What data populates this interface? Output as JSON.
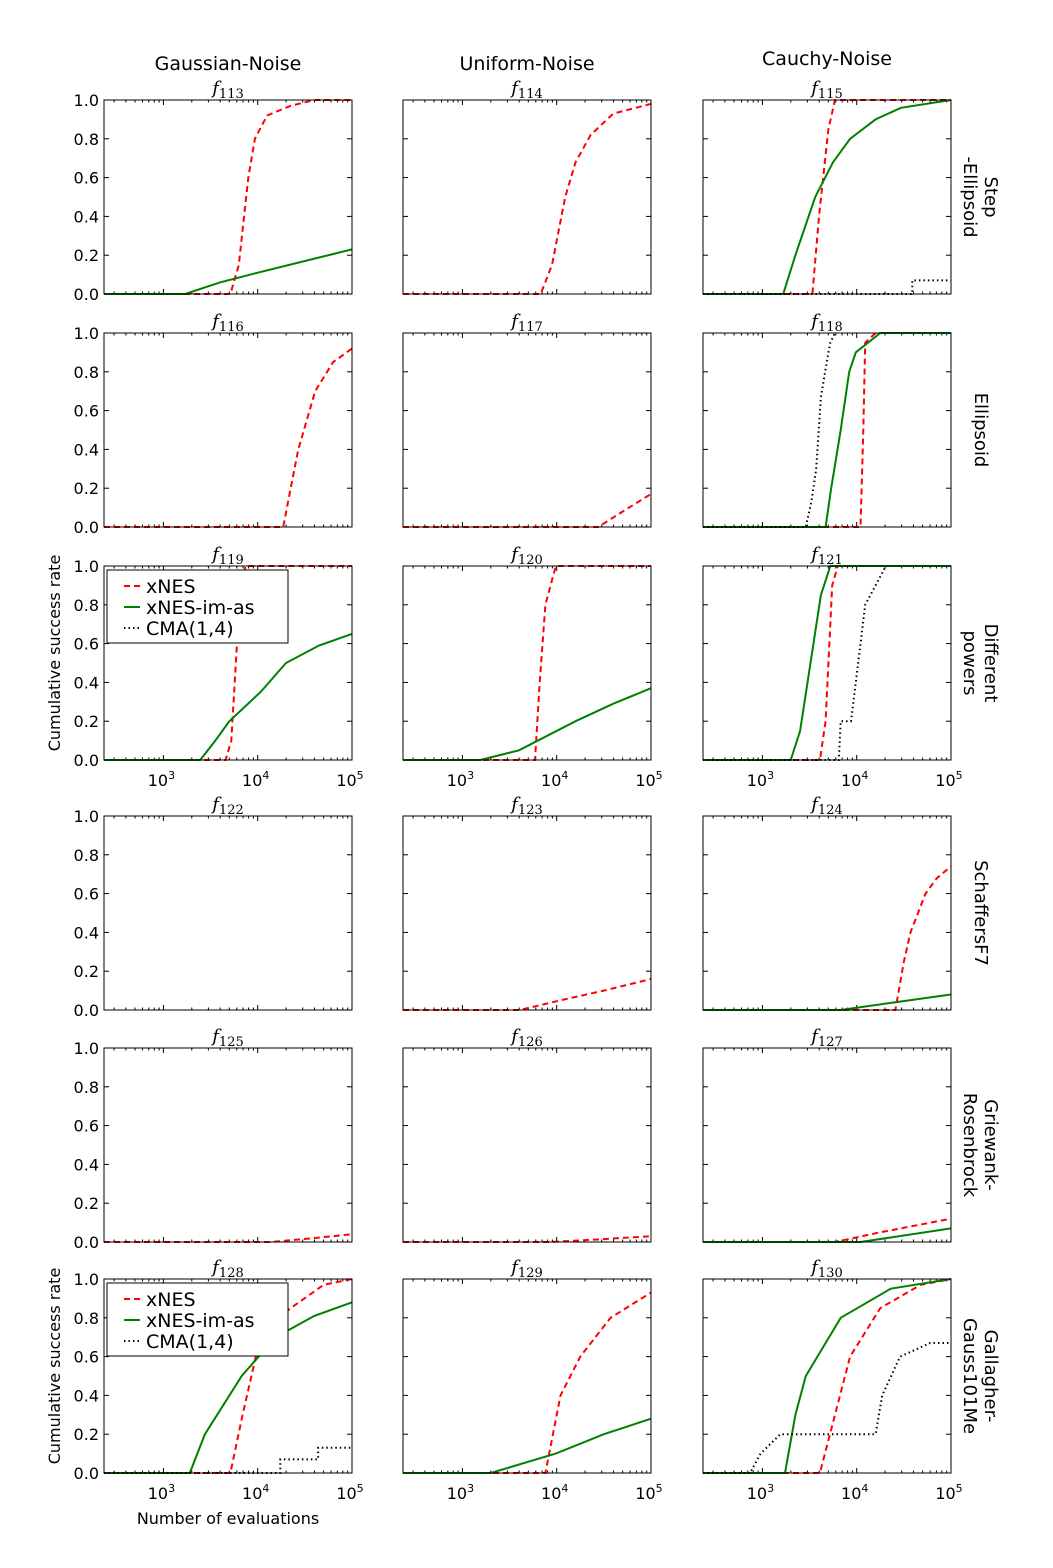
{
  "chart_data": {
    "type": "line",
    "column_titles": [
      "Gaussian-Noise",
      "Uniform-Noise",
      "Cauchy-Noise"
    ],
    "row_labels": [
      [
        "Step",
        "-Ellipsoid"
      ],
      [
        "Ellipsoid"
      ],
      [
        "Different",
        "powers"
      ],
      [
        "SchaffersF7"
      ],
      [
        "Griewank-",
        "Rosenbrock"
      ],
      [
        "Gallagher-",
        "Gauss101Me"
      ]
    ],
    "ylabel": "Cumulative success rate",
    "xlabel": "Number of evaluations",
    "x_scale": "log10",
    "xlim_log10": [
      2.37,
      5
    ],
    "ylim": [
      0,
      1
    ],
    "y_ticks": [
      "0.0",
      "0.2",
      "0.4",
      "0.6",
      "0.8",
      "1.0"
    ],
    "x_ticks": [
      {
        "base": "10",
        "exp": "3"
      },
      {
        "base": "10",
        "exp": "4"
      },
      {
        "base": "10",
        "exp": "5"
      }
    ],
    "legend": {
      "placement": "top-left",
      "entries": [
        {
          "name": "xNES",
          "color": "#ff0000",
          "style": "dashed"
        },
        {
          "name": "xNES-im-as",
          "color": "#008000",
          "style": "solid"
        },
        {
          "name": "CMA(1,4)",
          "color": "#000000",
          "style": "dotted"
        }
      ]
    },
    "panels": [
      {
        "f": "f",
        "sub": "113",
        "series": {
          "xNES": [
            [
              2.37,
              0
            ],
            [
              3.71,
              0
            ],
            [
              3.8,
              0.15
            ],
            [
              3.9,
              0.6
            ],
            [
              3.97,
              0.8
            ],
            [
              4.1,
              0.92
            ],
            [
              4.35,
              0.97
            ],
            [
              4.6,
              1.0
            ],
            [
              5,
              1.0
            ]
          ],
          "xNES-im-as": [
            [
              2.37,
              0
            ],
            [
              3.23,
              0
            ],
            [
              3.6,
              0.06
            ],
            [
              4.0,
              0.11
            ],
            [
              4.5,
              0.17
            ],
            [
              5,
              0.23
            ]
          ]
        }
      },
      {
        "f": "f",
        "sub": "114",
        "series": {
          "xNES": [
            [
              2.37,
              0
            ],
            [
              3.83,
              0
            ],
            [
              3.95,
              0.15
            ],
            [
              4.09,
              0.5
            ],
            [
              4.2,
              0.68
            ],
            [
              4.36,
              0.82
            ],
            [
              4.6,
              0.93
            ],
            [
              5,
              0.98
            ]
          ]
        }
      },
      {
        "f": "f",
        "sub": "115",
        "series": {
          "xNES": [
            [
              2.37,
              0
            ],
            [
              3.53,
              0
            ],
            [
              3.6,
              0.4
            ],
            [
              3.7,
              0.85
            ],
            [
              3.77,
              1.0
            ],
            [
              5,
              1.0
            ]
          ],
          "xNES-im-as": [
            [
              2.37,
              0
            ],
            [
              3.22,
              0
            ],
            [
              3.35,
              0.2
            ],
            [
              3.56,
              0.5
            ],
            [
              3.75,
              0.68
            ],
            [
              3.93,
              0.8
            ],
            [
              4.2,
              0.9
            ],
            [
              4.47,
              0.96
            ],
            [
              5,
              1.0
            ]
          ],
          "CMA(1,4)": [
            [
              2.37,
              0
            ],
            [
              4.59,
              0
            ],
            [
              4.59,
              0.07
            ],
            [
              5,
              0.07
            ]
          ]
        }
      },
      {
        "f": "f",
        "sub": "116",
        "series": {
          "xNES": [
            [
              2.37,
              0
            ],
            [
              4.27,
              0
            ],
            [
              4.35,
              0.2
            ],
            [
              4.43,
              0.4
            ],
            [
              4.61,
              0.7
            ],
            [
              4.8,
              0.85
            ],
            [
              5,
              0.92
            ]
          ]
        }
      },
      {
        "f": "f",
        "sub": "117",
        "series": {
          "xNES": [
            [
              2.37,
              0
            ],
            [
              4.44,
              0
            ],
            [
              4.7,
              0.08
            ],
            [
              5,
              0.17
            ]
          ]
        }
      },
      {
        "f": "f",
        "sub": "118",
        "series": {
          "xNES": [
            [
              2.37,
              0
            ],
            [
              4.04,
              0
            ],
            [
              4.07,
              0.5
            ],
            [
              4.09,
              0.95
            ],
            [
              4.2,
              1.0
            ],
            [
              5,
              1.0
            ]
          ],
          "xNES-im-as": [
            [
              2.37,
              0
            ],
            [
              3.67,
              0
            ],
            [
              3.73,
              0.2
            ],
            [
              3.83,
              0.5
            ],
            [
              3.92,
              0.8
            ],
            [
              3.99,
              0.9
            ],
            [
              4.25,
              1.0
            ],
            [
              5,
              1.0
            ]
          ],
          "CMA(1,4)": [
            [
              2.37,
              0
            ],
            [
              3.46,
              0
            ],
            [
              3.52,
              0.13
            ],
            [
              3.57,
              0.3
            ],
            [
              3.62,
              0.67
            ],
            [
              3.7,
              0.9
            ],
            [
              3.72,
              0.95
            ],
            [
              3.77,
              1.0
            ]
          ]
        }
      },
      {
        "f": "f",
        "sub": "119",
        "series": {
          "xNES": [
            [
              2.37,
              0
            ],
            [
              3.66,
              0
            ],
            [
              3.72,
              0.1
            ],
            [
              3.78,
              0.6
            ],
            [
              3.87,
              1.0
            ],
            [
              5,
              1.0
            ]
          ],
          "xNES-im-as": [
            [
              2.37,
              0
            ],
            [
              3.39,
              0
            ],
            [
              3.55,
              0.1
            ],
            [
              3.7,
              0.2
            ],
            [
              4.03,
              0.35
            ],
            [
              4.3,
              0.5
            ],
            [
              4.65,
              0.59
            ],
            [
              5,
              0.65
            ]
          ]
        }
      },
      {
        "f": "f",
        "sub": "120",
        "series": {
          "xNES": [
            [
              2.37,
              0
            ],
            [
              3.77,
              0
            ],
            [
              3.82,
              0.4
            ],
            [
              3.88,
              0.8
            ],
            [
              3.99,
              1.0
            ],
            [
              5,
              1.0
            ]
          ],
          "xNES-im-as": [
            [
              2.37,
              0
            ],
            [
              3.19,
              0
            ],
            [
              3.6,
              0.05
            ],
            [
              4.2,
              0.2
            ],
            [
              4.6,
              0.29
            ],
            [
              5,
              0.37
            ]
          ]
        }
      },
      {
        "f": "f",
        "sub": "121",
        "series": {
          "xNES": [
            [
              2.37,
              0
            ],
            [
              3.61,
              0
            ],
            [
              3.67,
              0.2
            ],
            [
              3.74,
              0.9
            ],
            [
              3.8,
              1.0
            ],
            [
              5,
              1.0
            ]
          ],
          "xNES-im-as": [
            [
              2.37,
              0
            ],
            [
              3.3,
              0
            ],
            [
              3.4,
              0.15
            ],
            [
              3.51,
              0.5
            ],
            [
              3.62,
              0.85
            ],
            [
              3.72,
              1.0
            ],
            [
              5,
              1.0
            ]
          ],
          "CMA(1,4)": [
            [
              2.37,
              0
            ],
            [
              3.81,
              0
            ],
            [
              3.83,
              0.2
            ],
            [
              3.94,
              0.2
            ],
            [
              3.99,
              0.4
            ],
            [
              4.09,
              0.8
            ],
            [
              4.2,
              0.9
            ],
            [
              4.31,
              1.0
            ]
          ]
        }
      },
      {
        "f": "f",
        "sub": "122",
        "series": {}
      },
      {
        "f": "f",
        "sub": "123",
        "series": {
          "xNES": [
            [
              2.37,
              0
            ],
            [
              3.61,
              0
            ],
            [
              4.04,
              0.05
            ],
            [
              4.5,
              0.1
            ],
            [
              5,
              0.16
            ]
          ]
        }
      },
      {
        "f": "f",
        "sub": "124",
        "series": {
          "xNES": [
            [
              2.37,
              0
            ],
            [
              4.41,
              0
            ],
            [
              4.5,
              0.25
            ],
            [
              4.57,
              0.4
            ],
            [
              4.73,
              0.6
            ],
            [
              4.85,
              0.68
            ],
            [
              5,
              0.74
            ]
          ],
          "xNES-im-as": [
            [
              2.37,
              0
            ],
            [
              3.83,
              0
            ],
            [
              4.41,
              0.04
            ],
            [
              5,
              0.08
            ]
          ]
        }
      },
      {
        "f": "f",
        "sub": "125",
        "series": {
          "xNES": [
            [
              2.37,
              0
            ],
            [
              4.14,
              0
            ],
            [
              4.6,
              0.02
            ],
            [
              5,
              0.04
            ]
          ]
        }
      },
      {
        "f": "f",
        "sub": "126",
        "series": {
          "xNES": [
            [
              2.37,
              0
            ],
            [
              3.93,
              0
            ],
            [
              4.5,
              0.015
            ],
            [
              5,
              0.03
            ]
          ]
        }
      },
      {
        "f": "f",
        "sub": "127",
        "series": {
          "xNES": [
            [
              2.37,
              0
            ],
            [
              3.77,
              0
            ],
            [
              4.25,
              0.05
            ],
            [
              5,
              0.12
            ]
          ],
          "xNES-im-as": [
            [
              2.37,
              0
            ],
            [
              4.04,
              0
            ],
            [
              5,
              0.07
            ]
          ]
        }
      },
      {
        "f": "f",
        "sub": "128",
        "series": {
          "xNES": [
            [
              2.37,
              0
            ],
            [
              3.71,
              0
            ],
            [
              3.84,
              0.3
            ],
            [
              3.98,
              0.6
            ],
            [
              4.1,
              0.75
            ],
            [
              4.35,
              0.85
            ],
            [
              4.7,
              0.97
            ],
            [
              5,
              1.0
            ]
          ],
          "xNES-im-as": [
            [
              2.37,
              0
            ],
            [
              3.28,
              0
            ],
            [
              3.44,
              0.2
            ],
            [
              3.83,
              0.5
            ],
            [
              4.19,
              0.7
            ],
            [
              4.6,
              0.81
            ],
            [
              5,
              0.88
            ]
          ],
          "CMA(1,4)": [
            [
              2.37,
              0
            ],
            [
              4.24,
              0
            ],
            [
              4.24,
              0.07
            ],
            [
              4.64,
              0.07
            ],
            [
              4.64,
              0.13
            ],
            [
              5,
              0.13
            ]
          ]
        }
      },
      {
        "f": "f",
        "sub": "129",
        "series": {
          "xNES": [
            [
              2.37,
              0
            ],
            [
              3.88,
              0
            ],
            [
              4.04,
              0.4
            ],
            [
              4.25,
              0.6
            ],
            [
              4.57,
              0.8
            ],
            [
              5,
              0.93
            ]
          ],
          "xNES-im-as": [
            [
              2.37,
              0
            ],
            [
              3.3,
              0
            ],
            [
              3.99,
              0.1
            ],
            [
              4.5,
              0.2
            ],
            [
              5,
              0.28
            ]
          ]
        }
      },
      {
        "f": "f",
        "sub": "130",
        "series": {
          "xNES": [
            [
              2.37,
              0
            ],
            [
              3.61,
              0
            ],
            [
              3.77,
              0.3
            ],
            [
              3.93,
              0.6
            ],
            [
              4.25,
              0.85
            ],
            [
              4.68,
              0.97
            ],
            [
              5,
              1.0
            ]
          ],
          "xNES-im-as": [
            [
              2.37,
              0
            ],
            [
              3.24,
              0
            ],
            [
              3.35,
              0.3
            ],
            [
              3.46,
              0.5
            ],
            [
              3.83,
              0.8
            ],
            [
              4.36,
              0.95
            ],
            [
              5,
              1.0
            ]
          ],
          "CMA(1,4)": [
            [
              2.37,
              0
            ],
            [
              2.87,
              0
            ],
            [
              2.98,
              0.1
            ],
            [
              3.19,
              0.2
            ],
            [
              4.2,
              0.2
            ],
            [
              4.27,
              0.4
            ],
            [
              4.46,
              0.6
            ],
            [
              4.78,
              0.67
            ],
            [
              5,
              0.67
            ]
          ]
        }
      }
    ]
  }
}
